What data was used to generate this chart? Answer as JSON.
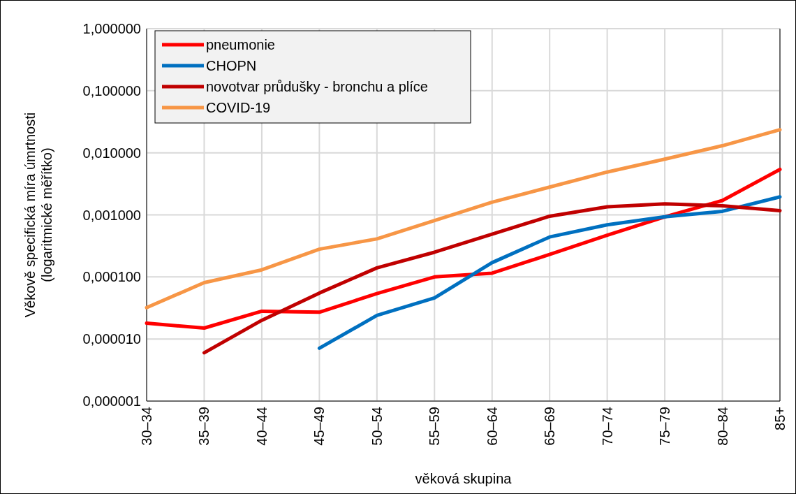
{
  "chart_data": {
    "type": "line",
    "xlabel": "věková skupina",
    "ylabel": "Věkově specifická míra úmrtnosti\n(logaritmické měřítko)",
    "categories": [
      "30–34",
      "35–39",
      "40–44",
      "45–49",
      "50–54",
      "55–59",
      "60–64",
      "65–69",
      "70–74",
      "75–79",
      "80–84",
      "85+"
    ],
    "series": [
      {
        "name": "pneumonie",
        "color": "#ff0000",
        "values": [
          1.8e-05,
          1.5e-05,
          2.8e-05,
          2.7e-05,
          5.4e-05,
          0.0001,
          0.000115,
          0.00023,
          0.00047,
          0.00093,
          0.0017,
          0.0054
        ]
      },
      {
        "name": "CHOPN",
        "color": "#0070c0",
        "values": [
          null,
          null,
          null,
          7.1e-06,
          2.4e-05,
          4.6e-05,
          0.00017,
          0.00044,
          0.00069,
          0.00093,
          0.00114,
          0.00195
        ]
      },
      {
        "name": "novotvar průdušky - bronchu a plíce",
        "color": "#c00000",
        "values": [
          null,
          6e-06,
          2e-05,
          5.5e-05,
          0.00014,
          0.00025,
          0.00049,
          0.00095,
          0.00135,
          0.0015,
          0.0014,
          0.00117
        ]
      },
      {
        "name": "COVID-19",
        "color": "#f79646",
        "values": [
          3.2e-05,
          8.1e-05,
          0.00013,
          0.00028,
          0.00041,
          0.00081,
          0.0016,
          0.0028,
          0.0049,
          0.0079,
          0.013,
          0.0235
        ]
      }
    ],
    "log": "y",
    "ylim": [
      1e-06,
      1
    ],
    "yticks": [
      {
        "value": 1e-06,
        "label": "0,000001"
      },
      {
        "value": 1e-05,
        "label": "0,000010"
      },
      {
        "value": 0.0001,
        "label": "0,000100"
      },
      {
        "value": 0.001,
        "label": "0,001000"
      },
      {
        "value": 0.01,
        "label": "0,010000"
      },
      {
        "value": 0.1,
        "label": "0,100000"
      },
      {
        "value": 1,
        "label": "1,000000"
      }
    ],
    "grid": true,
    "legend": "top left",
    "line_style": "solid"
  }
}
